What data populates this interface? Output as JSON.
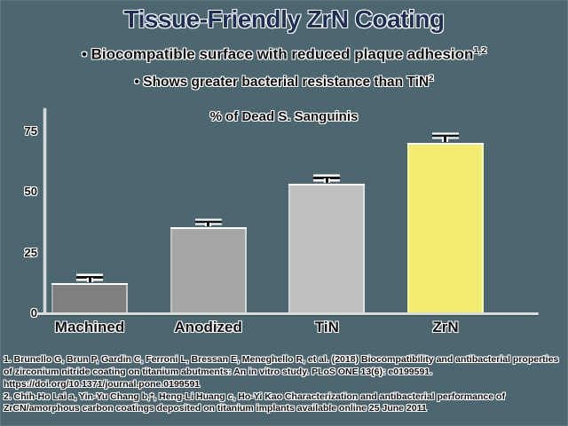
{
  "slide": {
    "title": "Tissue-Friendly ZrN Coating",
    "bullets": [
      {
        "marker": "•",
        "text": "Biocompatible surface with reduced plaque adhesion",
        "superscript": "1,2"
      },
      {
        "marker": "•",
        "text": "Shows greater bacterial resistance than TiN",
        "superscript": "2"
      }
    ]
  },
  "chart_data": {
    "type": "bar",
    "title": "% of Dead S. Sanguinis",
    "categories": [
      "Machined",
      "Anodized",
      "TiN",
      "ZrN"
    ],
    "values": [
      12,
      35,
      53,
      70
    ],
    "errors": [
      2.5,
      2.5,
      2.5,
      3
    ],
    "bar_colors": [
      "#7f7f7f",
      "#a6a6a6",
      "#c0c0c0",
      "#f2ec72"
    ],
    "yticks": [
      0,
      25,
      50,
      75
    ],
    "ylim": [
      0,
      82
    ],
    "xlabel": "",
    "ylabel": "",
    "grid": false,
    "legend": null
  },
  "footnotes": [
    "1. Brunello G, Brun P, Gardin C, Ferroni L, Bressan E, Meneghello R, et al. (2018) Biocompatibility and antibacterial properties of zirconium nitride coating on titanium abutments: An in vitro study. PLoS ONE 13(6): e0199591. https://doi.org/10.1371/journal.pone.0199591",
    "2. Chih-Ho Lai a, Yin-Yu Chang b,*, Heng-Li Huang c, Ho-Yi Kao Characterization and antibacterial performance of ZrCN/amorphous carbon coatings deposited on titanium implants available online 25 June 2011"
  ],
  "colors": {
    "background": "#4d6771",
    "title_color": "#1e2e54",
    "text_color": "#101010",
    "axis_color": "#d9d9d9",
    "err_color": "#141414"
  }
}
